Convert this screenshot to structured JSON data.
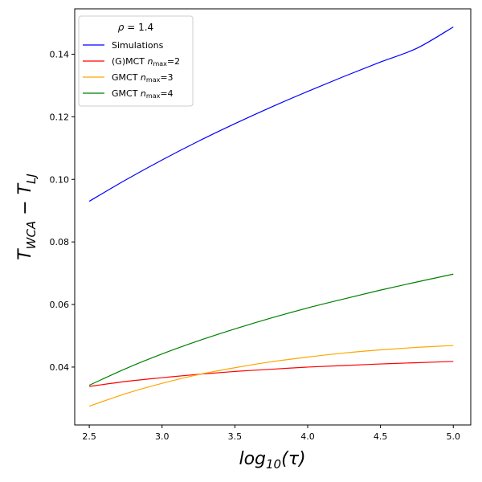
{
  "chart_data": {
    "type": "line",
    "xlabel": "log10(τ)",
    "ylabel": "T_WCA − T_LJ",
    "xlim": [
      2.4,
      5.12
    ],
    "ylim": [
      0.0215,
      0.1545
    ],
    "xticks": [
      "2.5",
      "3.0",
      "3.5",
      "4.0",
      "4.5",
      "5.0"
    ],
    "yticks": [
      "0.04",
      "0.06",
      "0.08",
      "0.10",
      "0.12",
      "0.14"
    ],
    "legend": {
      "title": "ρ = 1.4",
      "placement": "upper-left"
    },
    "x": [
      2.5,
      2.75,
      3.0,
      3.25,
      3.5,
      3.75,
      4.0,
      4.25,
      4.5,
      4.75,
      5.0
    ],
    "series": [
      {
        "name": "Simulations",
        "color": "#0000ff",
        "values": [
          0.093,
          0.0998,
          0.1062,
          0.1122,
          0.1178,
          0.1231,
          0.1281,
          0.1329,
          0.1375,
          0.1419,
          0.1487
        ]
      },
      {
        "name": "(G)MCT n_max=2",
        "color": "#ff0000",
        "values": [
          0.0338,
          0.0354,
          0.0366,
          0.0377,
          0.0386,
          0.0393,
          0.04,
          0.0405,
          0.041,
          0.0414,
          0.0418
        ]
      },
      {
        "name": "GMCT n_max=3",
        "color": "#ffa500",
        "values": [
          0.0275,
          0.0315,
          0.0348,
          0.0376,
          0.0398,
          0.0417,
          0.0432,
          0.0445,
          0.0455,
          0.0463,
          0.0469
        ]
      },
      {
        "name": "GMCT n_max=4",
        "color": "#008000",
        "values": [
          0.0342,
          0.0395,
          0.0442,
          0.0484,
          0.0522,
          0.0557,
          0.0589,
          0.0618,
          0.0646,
          0.0672,
          0.0697
        ]
      }
    ]
  }
}
